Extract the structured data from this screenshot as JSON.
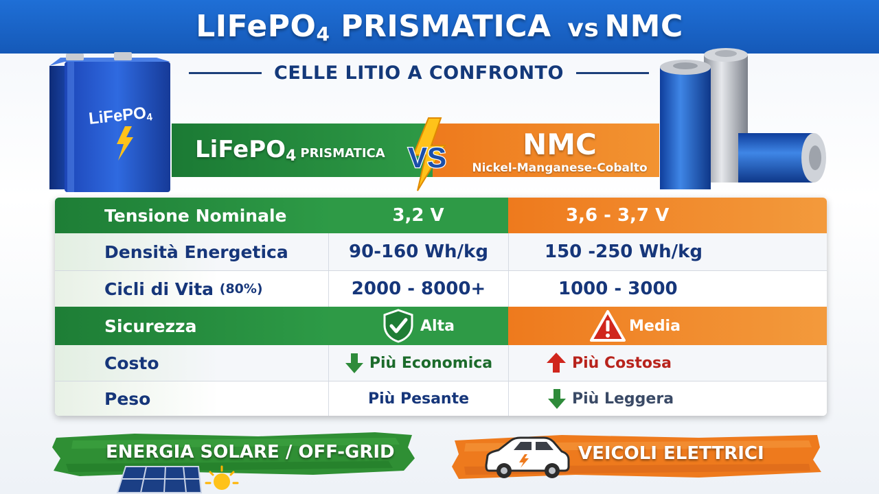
{
  "header": {
    "title_part1": "LIFePO",
    "title_sub": "4",
    "title_part2": " PRISMATICA",
    "title_vs": "vs",
    "title_part3": "NMC",
    "subtitle": "CELLE LITIO A CONFRONTO"
  },
  "left_battery": {
    "label_main": "LiFePO",
    "label_sub": "4"
  },
  "comparison_header": {
    "left_name": "LiFePO",
    "left_sub": "4",
    "left_suffix": "PRISMATICA",
    "vs_text": "VS",
    "right_name": "NMC",
    "right_full": "Nickel-Manganese-Cobalto"
  },
  "table": {
    "rows": [
      {
        "label": "Tensione Nominale",
        "label_note": "",
        "left": "3,2 V",
        "right": "3,6 - 3,7 V"
      },
      {
        "label": "Densità Energetica",
        "label_note": "",
        "left": "90-160 Wh/kg",
        "right": "150 -250 Wh/kg"
      },
      {
        "label": "Cicli di Vita",
        "label_note": "(80%)",
        "left": "2000 - 8000+",
        "right": "1000 - 3000"
      },
      {
        "label": "Sicurezza",
        "label_note": "",
        "left": "Alta",
        "right": "Media"
      },
      {
        "label": "Costo",
        "label_note": "",
        "left": "Più Economica",
        "right": "Più Costosa"
      },
      {
        "label": "Peso",
        "label_note": "",
        "left": "Più Pesante",
        "right": "Più Leggera"
      }
    ]
  },
  "icons": {
    "safety_left": "shield-check-icon",
    "safety_right": "warning-triangle-icon",
    "cost_left": "arrow-down-icon",
    "cost_right": "arrow-up-icon",
    "weight_right": "arrow-down-icon"
  },
  "bottom": {
    "left_label": "ENERGIA SOLARE / OFF-GRID",
    "right_label": "VEICOLI ELETTRICI"
  },
  "colors": {
    "blue_banner": "#1f6fd6",
    "green": "#2e9a46",
    "orange": "#f08324",
    "navy_text": "#16367a",
    "red": "#c4261e"
  }
}
